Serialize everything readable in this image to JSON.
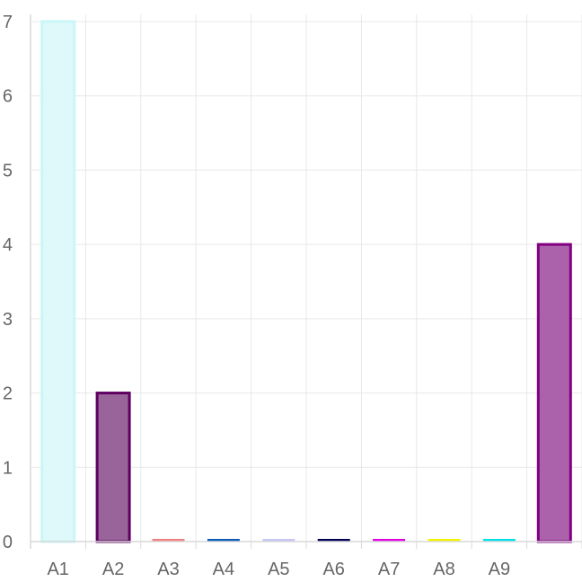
{
  "chart_data": {
    "type": "bar",
    "title": "",
    "xlabel": "",
    "ylabel": "",
    "categories": [
      "A1",
      "A2",
      "A3",
      "A4",
      "A5",
      "A6",
      "A7",
      "A8",
      "A9",
      ""
    ],
    "values": [
      7,
      2,
      0,
      0,
      0,
      0,
      0,
      0,
      0,
      4
    ],
    "ylim": [
      0,
      7
    ],
    "yticks": [
      0,
      1,
      2,
      3,
      4,
      5,
      6,
      7
    ],
    "grid": true,
    "legend": "none",
    "bar_styles": [
      {
        "fill": "#dff9fb",
        "stroke": "#c9f6f7"
      },
      {
        "fill": "#98649a",
        "stroke": "#5e0060"
      },
      {
        "fill": "#f08080",
        "stroke": "#f08080"
      },
      {
        "fill": "#1f5fbf",
        "stroke": "#0b5cb8"
      },
      {
        "fill": "#ccccff",
        "stroke": "#c6c6f6"
      },
      {
        "fill": "#000066",
        "stroke": "#000055"
      },
      {
        "fill": "#ee00ee",
        "stroke": "#e000e0"
      },
      {
        "fill": "#ffff00",
        "stroke": "#f5f500"
      },
      {
        "fill": "#00e5ee",
        "stroke": "#00e0e8"
      },
      {
        "fill": "#ab62ab",
        "stroke": "#800080"
      }
    ]
  }
}
